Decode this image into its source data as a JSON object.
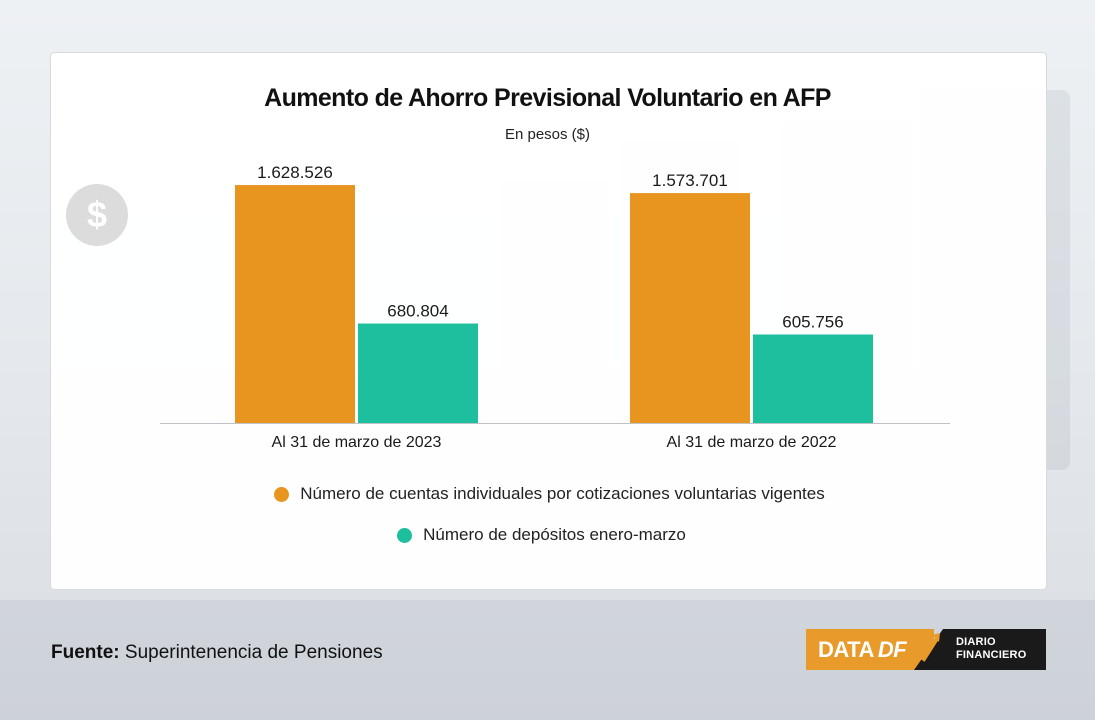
{
  "title": "Aumento de Ahorro Previsional Voluntario en AFP",
  "subtitle": "En pesos ($)",
  "dollar_icon": "$",
  "chart_data": {
    "type": "bar",
    "title": "Aumento de Ahorro Previsional Voluntario en AFP",
    "subtitle": "En pesos ($)",
    "categories": [
      "Al 31 de marzo de 2023",
      "Al 31 de marzo de 2022"
    ],
    "series": [
      {
        "name": "Número de cuentas individuales por cotizaciones voluntarias vigentes",
        "values": [
          1628526,
          1573701
        ],
        "labels": [
          "1.628.526",
          "1.573.701"
        ],
        "color": "#e8951f"
      },
      {
        "name": "Número de depósitos enero-marzo",
        "values": [
          680804,
          605756
        ],
        "labels": [
          "680.804",
          "605.756"
        ],
        "color": "#1dbf9f"
      }
    ],
    "ylim": [
      0,
      1800000
    ],
    "grid": false,
    "legend_position": "bottom"
  },
  "source": {
    "label": "Fuente:",
    "text": "Superintenencia de Pensiones"
  },
  "logo": {
    "data": "DATA",
    "df": "DF",
    "line1": "DIARIO",
    "line2": "FINANCIERO",
    "accent_color": "#e89a2a"
  }
}
